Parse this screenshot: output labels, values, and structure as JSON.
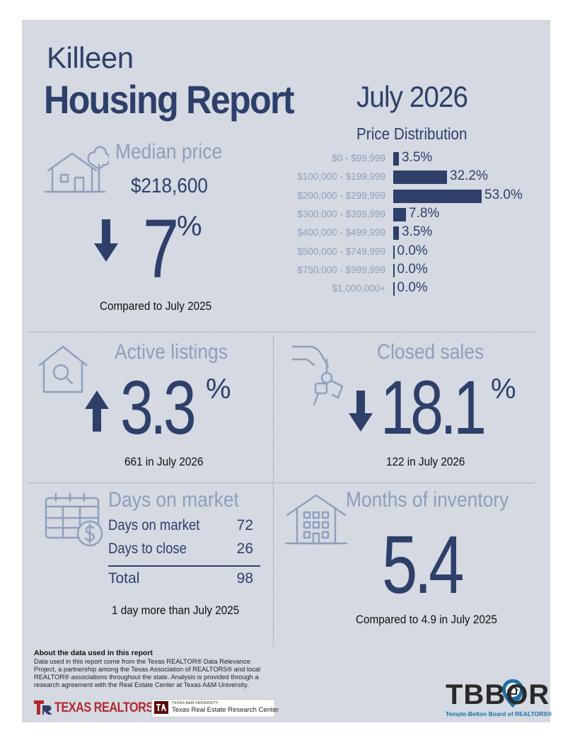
{
  "header": {
    "city": "Killeen",
    "title": "Housing Report",
    "period": "July 2026"
  },
  "price_distribution": {
    "title": "Price Distribution",
    "rows": [
      {
        "label": "$0 - $99,999",
        "value": "3.5%",
        "pct": 3.5
      },
      {
        "label": "$100,000 - $199,999",
        "value": "32.2%",
        "pct": 32.2
      },
      {
        "label": "$200,000 - $299,999",
        "value": "53.0%",
        "pct": 53.0
      },
      {
        "label": "$300,000 - $399,999",
        "value": "7.8%",
        "pct": 7.8
      },
      {
        "label": "$400,000 - $499,999",
        "value": "3.5%",
        "pct": 3.5
      },
      {
        "label": "$500,000 - $749,999",
        "value": "0.0%",
        "pct": 0.0
      },
      {
        "label": "$750,000 - $999,999",
        "value": "0.0%",
        "pct": 0.0
      },
      {
        "label": "$1,000,000+",
        "value": "0.0%",
        "pct": 0.0
      }
    ]
  },
  "median_price": {
    "title": "Median price",
    "value": "$218,600",
    "change": "7",
    "unit": "%",
    "direction": "down",
    "caption": "Compared to July 2025"
  },
  "active_listings": {
    "title": "Active listings",
    "change": "3.3",
    "unit": "%",
    "direction": "up",
    "caption": "661 in July 2026"
  },
  "closed_sales": {
    "title": "Closed sales",
    "change": "18.1",
    "unit": "%",
    "direction": "down",
    "caption": "122 in July 2026"
  },
  "days_on_market": {
    "title": "Days on market",
    "rows": [
      {
        "label": "Days on market",
        "value": "72"
      },
      {
        "label": "Days to close",
        "value": "26"
      }
    ],
    "total_label": "Total",
    "total_value": "98",
    "caption": "1 day more than July 2025"
  },
  "months_inventory": {
    "title": "Months of inventory",
    "value": "5.4",
    "caption": "Compared to 4.9 in July 2025"
  },
  "about": {
    "title": "About the data used in this report",
    "text": "Data used in this report come from the Texas REALTOR® Data Relevance Project, a partnership among the Texas Association of REALTORS® and local REALTOR® associations throughout the state. Analysis is provided through a research agreement with the Real Estate Center at Texas A&M University."
  },
  "logos": {
    "texas_realtors": "TEXAS REALTORS",
    "tamu_small": "TEXAS A&M UNIVERSITY",
    "tamu": "Texas Real Estate Research Center",
    "tbbor": "TBBOR",
    "tbbor_sub": "Temple-Belton Board of REALTORS®"
  },
  "colors": {
    "navy": "#2e3f6a",
    "steel": "#8e9fba",
    "panel": "#d4d9e2",
    "brand_red": "#b5262d",
    "tbbor_blue": "#1d6fa5"
  },
  "icons": [
    "house-tree-icon",
    "arrow-down-icon",
    "house-search-icon",
    "arrow-up-icon",
    "hand-keys-icon",
    "calendar-dollar-icon",
    "apartment-building-icon",
    "map-pin-house-icon"
  ]
}
